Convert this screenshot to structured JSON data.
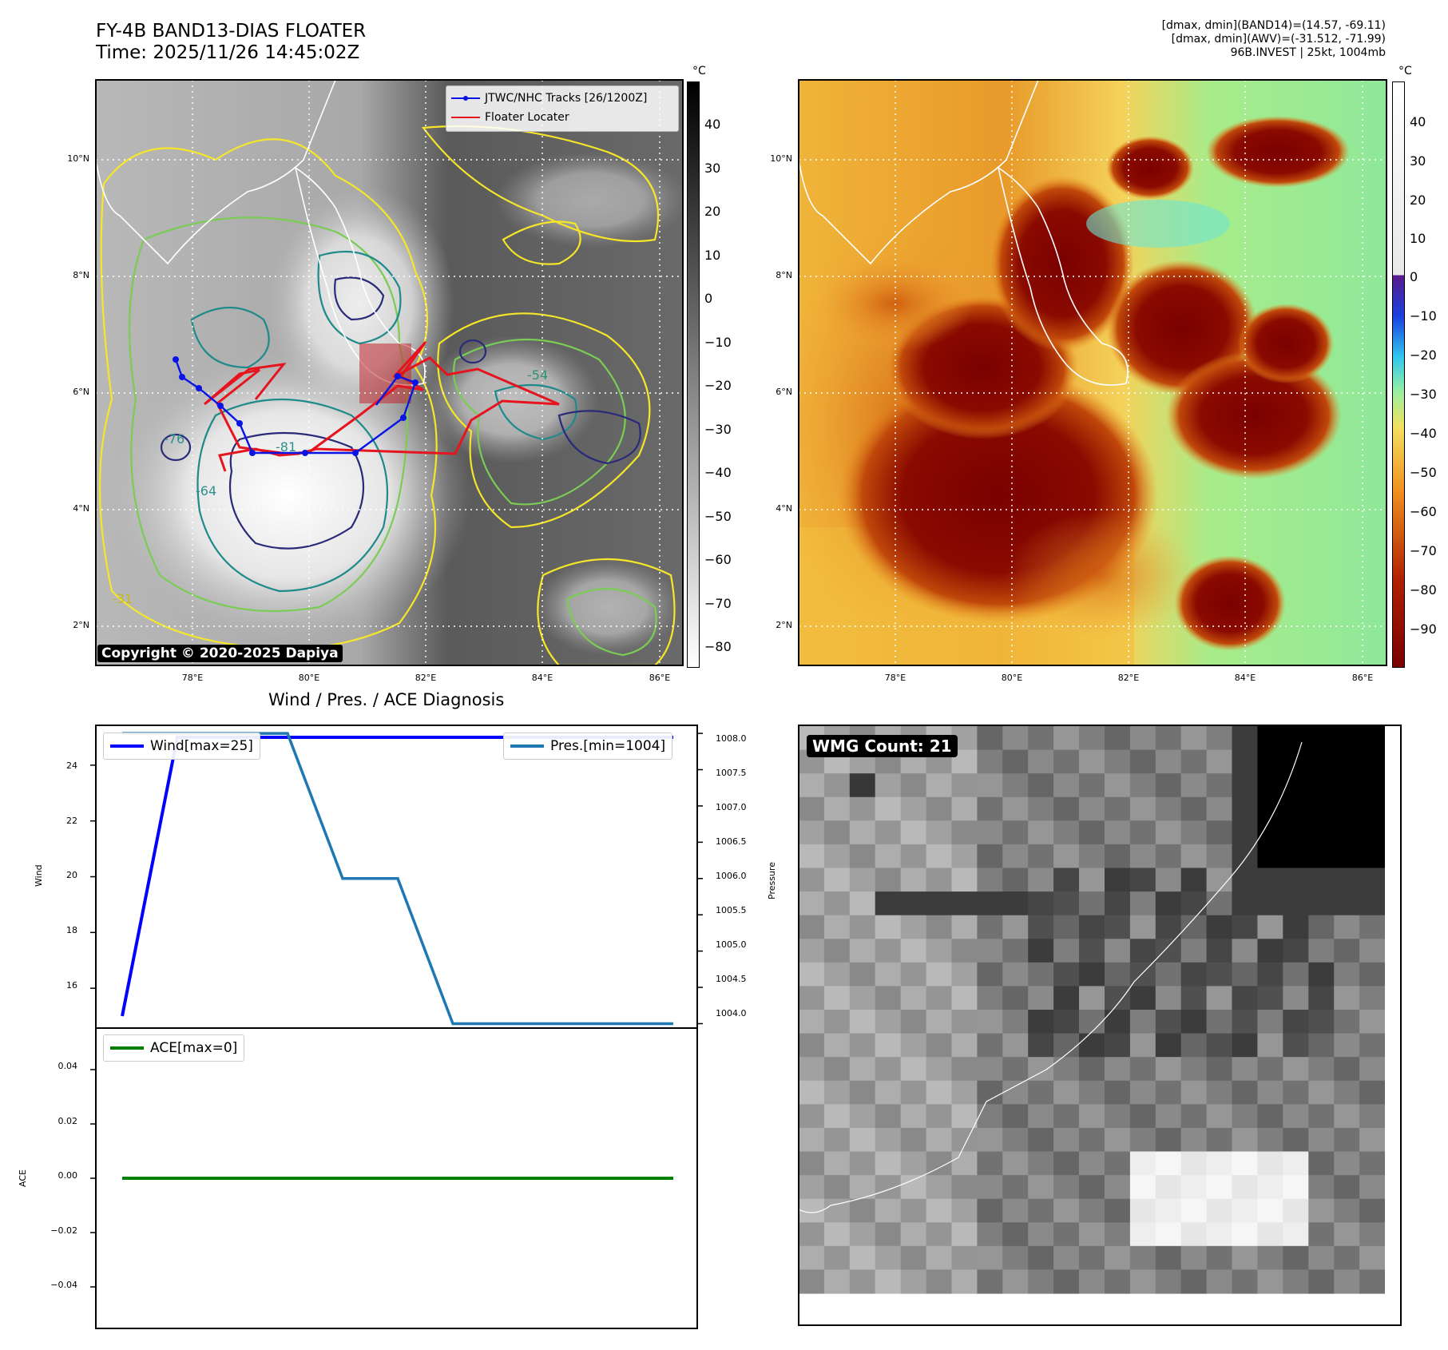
{
  "header": {
    "title_line1": "FY-4B BAND13-DIAS FLOATER",
    "title_line2": "Time: 2025/11/26 14:45:02Z",
    "info_line1": "[dmax, dmin](BAND14)=(14.57, -69.11)",
    "info_line2": "[dmax, dmin](AWV)=(-31.512, -71.99)",
    "info_line3": "96B.INVEST | 25kt, 1004mb"
  },
  "ir_map": {
    "lat_ticks": [
      "10°N",
      "8°N",
      "6°N",
      "4°N",
      "2°N"
    ],
    "lon_ticks": [
      "78°E",
      "80°E",
      "82°E",
      "84°E",
      "86°E"
    ],
    "legend_tracks": "JTWC/NHC Tracks [26/1200Z]",
    "legend_floater": "Floater Locater",
    "copyright": "Copyright © 2020-2025 Dapiya",
    "contour_labels": [
      "-31",
      "-54",
      "-64",
      "-76",
      "-81"
    ],
    "colorbar_unit": "°C",
    "colorbar_ticks": [
      "40",
      "30",
      "20",
      "10",
      "0",
      "−10",
      "−20",
      "−30",
      "−40",
      "−50",
      "−60",
      "−70",
      "−80"
    ],
    "colors": {
      "track": "#0a14e6",
      "floater": "#e6141e",
      "contour_outer": "#f5e62a",
      "contour_mid": "#7acc55",
      "contour_inner": "#1f8a8a",
      "contour_core": "#2a2a7a"
    }
  },
  "awv_map": {
    "lat_ticks": [
      "10°N",
      "8°N",
      "6°N",
      "4°N",
      "2°N"
    ],
    "lon_ticks": [
      "78°E",
      "80°E",
      "82°E",
      "84°E",
      "86°E"
    ],
    "colorbar_unit": "°C",
    "colorbar_ticks": [
      "40",
      "30",
      "20",
      "10",
      "0",
      "−10",
      "−20",
      "−30",
      "−40",
      "−50",
      "−60",
      "−70",
      "−80",
      "−90"
    ]
  },
  "diagnosis": {
    "title": "Wind / Pres. / ACE Diagnosis",
    "wind_ylabel": "Wind",
    "pressure_ylabel": "Pressure",
    "ace_ylabel": "ACE",
    "legend_wind": "Wind[max=25]",
    "legend_pres": "Pres.[min=1004]",
    "legend_ace": "ACE[max=0]",
    "wind_ticks": [
      "24",
      "22",
      "20",
      "18",
      "16"
    ],
    "pressure_ticks": [
      "1008.0",
      "1007.5",
      "1007.0",
      "1006.5",
      "1006.0",
      "1005.5",
      "1005.0",
      "1004.5",
      "1004.0"
    ],
    "ace_ticks": [
      "0.04",
      "0.02",
      "0.00",
      "−0.02",
      "−0.04"
    ]
  },
  "wmg": {
    "label": "WMG Count: 21"
  },
  "chart_data": [
    {
      "type": "line",
      "series": [
        {
          "name": "Wind[max=25]",
          "y_axis": "Wind",
          "color": "#0000ff",
          "values": [
            15,
            25,
            25,
            25,
            25,
            25,
            25,
            25,
            25,
            25,
            25
          ]
        },
        {
          "name": "Pres.[min=1004]",
          "y_axis": "Pressure",
          "color": "#1f77b4",
          "values": [
            1008,
            1008,
            1008,
            1008,
            1006,
            1006,
            1004,
            1004,
            1004,
            1004,
            1004
          ]
        }
      ],
      "x": [
        0,
        1,
        2,
        3,
        4,
        5,
        6,
        7,
        8,
        9,
        10
      ],
      "ylabel": "Wind",
      "ylabel_right": "Pressure",
      "ylim": [
        14.6,
        25.4
      ],
      "ylim_right": [
        1003.95,
        1008.1
      ]
    },
    {
      "type": "line",
      "series": [
        {
          "name": "ACE[max=0]",
          "color": "#008000",
          "values": [
            0,
            0,
            0,
            0,
            0,
            0,
            0,
            0,
            0,
            0,
            0
          ]
        }
      ],
      "x": [
        0,
        1,
        2,
        3,
        4,
        5,
        6,
        7,
        8,
        9,
        10
      ],
      "ylabel": "ACE",
      "ylim": [
        -0.055,
        0.055
      ]
    }
  ]
}
